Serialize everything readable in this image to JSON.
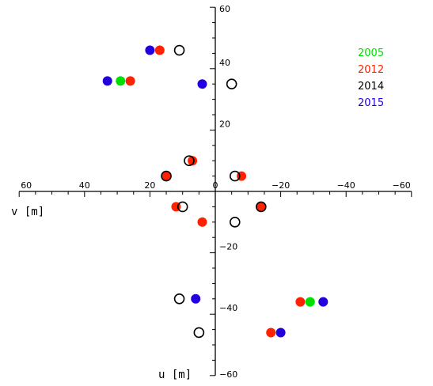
{
  "chart_data": {
    "type": "scatter",
    "xlabel": "v [m]",
    "ylabel": "u [m]",
    "xlim": [
      60,
      -60
    ],
    "ylim": [
      -60,
      60
    ],
    "x_ticks": [
      60,
      40,
      20,
      0,
      -20,
      -40,
      -60
    ],
    "y_ticks": [
      60,
      40,
      20,
      -20,
      -40,
      -60
    ],
    "x_tick_labels": [
      "60",
      "40",
      "20",
      "0",
      "−20",
      "−40",
      "−60"
    ],
    "y_tick_labels": [
      "60",
      "40",
      "20",
      "−20",
      "−40",
      "−60"
    ],
    "grid": false,
    "legend_position": "top-right",
    "series": [
      {
        "name": "2005",
        "color": "#00e000",
        "marker": "filled-circle",
        "points": [
          [
            29,
            36
          ],
          [
            -29,
            -36
          ]
        ]
      },
      {
        "name": "2012",
        "color": "#ff2200",
        "marker": "filled-circle",
        "points": [
          [
            17,
            46
          ],
          [
            26,
            36
          ],
          [
            7,
            10
          ],
          [
            15,
            5
          ],
          [
            -8,
            5
          ],
          [
            12,
            -5
          ],
          [
            -14,
            -5
          ],
          [
            4,
            -10
          ],
          [
            -26,
            -36
          ],
          [
            -17,
            -46
          ]
        ]
      },
      {
        "name": "2014",
        "color": "#000000",
        "marker": "open-circle",
        "points": [
          [
            11,
            46
          ],
          [
            -5,
            35
          ],
          [
            8,
            10
          ],
          [
            15,
            5
          ],
          [
            -6,
            5
          ],
          [
            10,
            -5
          ],
          [
            -14,
            -5
          ],
          [
            -6,
            -10
          ],
          [
            11,
            -35
          ],
          [
            5,
            -46
          ]
        ]
      },
      {
        "name": "2015",
        "color": "#2200dd",
        "marker": "filled-circle",
        "points": [
          [
            20,
            46
          ],
          [
            33,
            36
          ],
          [
            4,
            35
          ],
          [
            -33,
            -36
          ],
          [
            6,
            -35
          ],
          [
            -20,
            -46
          ]
        ]
      }
    ]
  }
}
